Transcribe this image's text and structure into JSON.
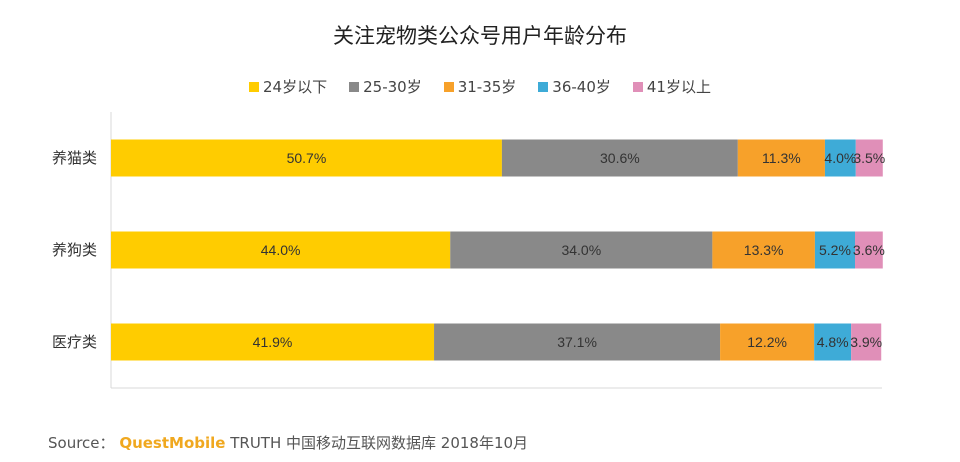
{
  "chart_data": {
    "type": "bar",
    "orientation": "horizontal",
    "stacked": true,
    "title": "关注宠物类公众号用户年龄分布",
    "legend_placement": "top",
    "grid": false,
    "xlim": [
      0,
      100
    ],
    "categories": [
      "养猫类",
      "养狗类",
      "医疗类"
    ],
    "series": [
      {
        "name": "24岁以下",
        "color": "#ffcc00",
        "values": [
          50.7,
          44.0,
          41.9
        ],
        "labels": [
          "50.7%",
          "44.0%",
          "41.9%"
        ]
      },
      {
        "name": "25-30岁",
        "color": "#898989",
        "values": [
          30.6,
          34.0,
          37.1
        ],
        "labels": [
          "30.6%",
          "34.0%",
          "37.1%"
        ]
      },
      {
        "name": "31-35岁",
        "color": "#f7a12a",
        "values": [
          11.3,
          13.3,
          12.2
        ],
        "labels": [
          "11.3%",
          "13.3%",
          "12.2%"
        ]
      },
      {
        "name": "36-40岁",
        "color": "#3eabd7",
        "values": [
          4.0,
          5.2,
          4.8
        ],
        "labels": [
          "4.0%",
          "5.2%",
          "4.8%"
        ]
      },
      {
        "name": "41岁以上",
        "color": "#e08fb8",
        "values": [
          3.5,
          3.6,
          3.9
        ],
        "labels": [
          "3.5%",
          "3.6%",
          "3.9%"
        ]
      }
    ]
  },
  "source": {
    "prefix": "Source：",
    "brand": "QuestMobile",
    "text": "TRUTH 中国移动互联网数据库 2018年10月"
  }
}
